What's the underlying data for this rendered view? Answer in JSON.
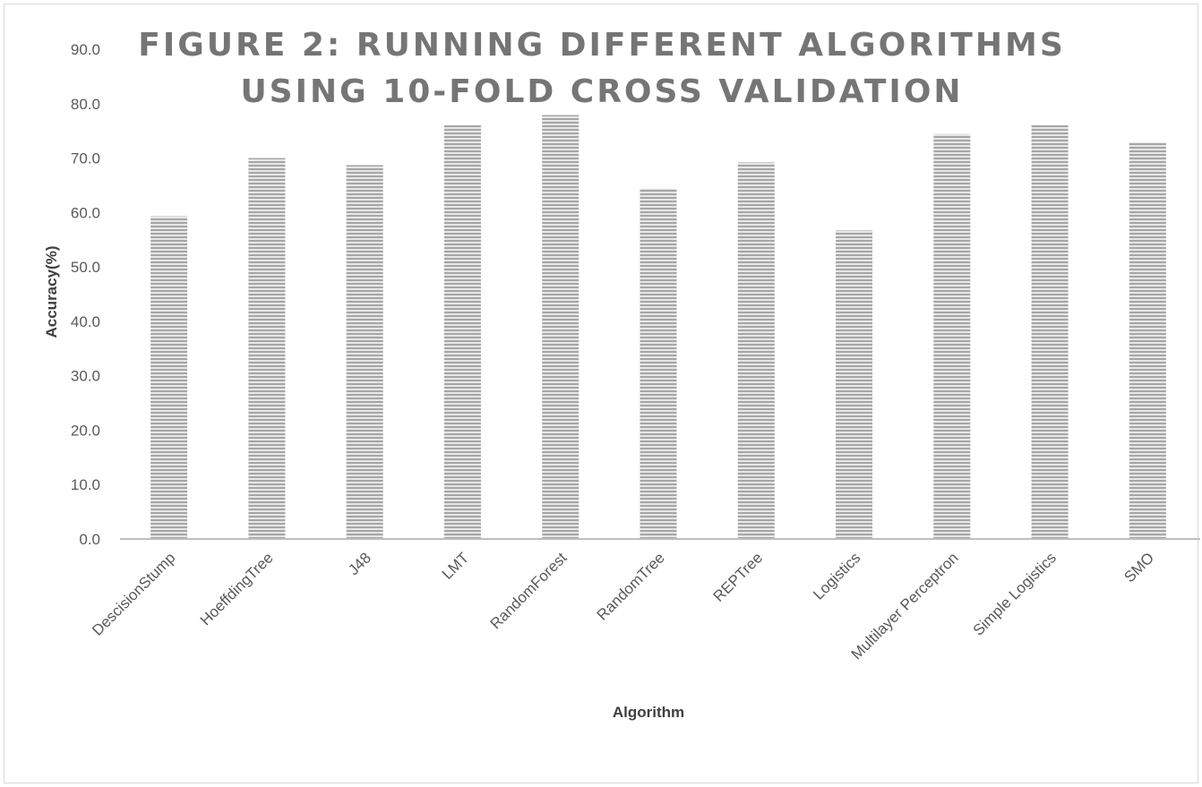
{
  "chart_data": {
    "type": "bar",
    "title_lines": [
      "FIGURE 2:  RUNNING DIFFERENT ALGORITHMS",
      "USING 10-FOLD CROSS VALIDATION"
    ],
    "xlabel": "Algorithm",
    "ylabel": "Accuracy(%)",
    "categories": [
      "DescisionStump",
      "HoeffdingTree",
      "J48",
      "LMT",
      "RandomForest",
      "RandomTree",
      "REPTree",
      "Logistics",
      "Multilayer Perceptron",
      "Simple Logistics",
      "SMO"
    ],
    "values": [
      59.3,
      70.0,
      68.7,
      76.1,
      77.9,
      64.4,
      69.2,
      56.7,
      74.4,
      76.1,
      72.9
    ],
    "ylim": [
      0,
      90
    ],
    "yticks": [
      "0.0",
      "10.0",
      "20.0",
      "30.0",
      "40.0",
      "50.0",
      "60.0",
      "70.0",
      "80.0",
      "90.0"
    ],
    "grid": false,
    "legend": "none",
    "colors": {
      "bar_fill": "#a6a6a6",
      "bar_stripe": "#e6e6e6",
      "axis": "#bfbfbf",
      "title": "#757575"
    }
  }
}
